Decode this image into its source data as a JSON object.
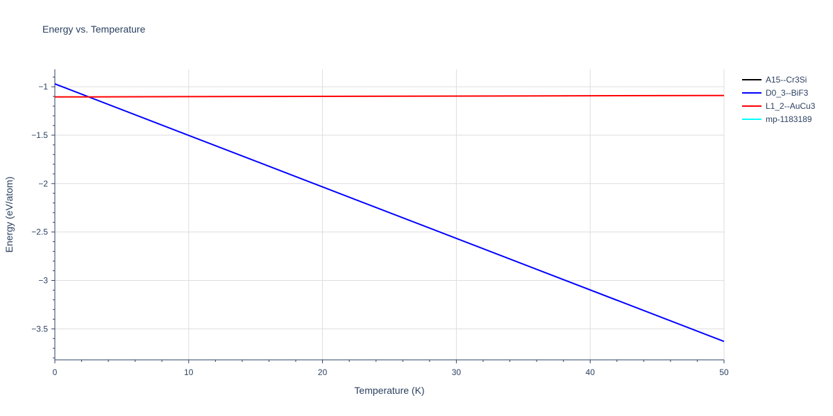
{
  "chart_data": {
    "type": "line",
    "title": "Energy vs. Temperature",
    "xlabel": "Temperature (K)",
    "ylabel": "Energy (eV/atom)",
    "xlim": [
      0,
      50
    ],
    "ylim": [
      -3.82,
      -0.82
    ],
    "x_ticks": [
      0,
      10,
      20,
      30,
      40,
      50
    ],
    "y_ticks": [
      -1,
      -1.5,
      -2,
      -2.5,
      -3,
      -3.5
    ],
    "y_tick_labels": [
      "−1",
      "−1.5",
      "−2",
      "−2.5",
      "−3",
      "−3.5"
    ],
    "grid": true,
    "legend_position": "top-right",
    "series": [
      {
        "name": "A15--Cr3Si",
        "color": "#000000",
        "x": [],
        "y": []
      },
      {
        "name": "D0_3--BiF3",
        "color": "#0000ff",
        "x": [
          0,
          50
        ],
        "y": [
          -0.97,
          -3.63
        ]
      },
      {
        "name": "L1_2--AuCu3",
        "color": "#ff0000",
        "x": [
          0,
          50
        ],
        "y": [
          -1.105,
          -1.09
        ]
      },
      {
        "name": "mp-1183189",
        "color": "#00ffff",
        "x": [],
        "y": []
      }
    ]
  }
}
